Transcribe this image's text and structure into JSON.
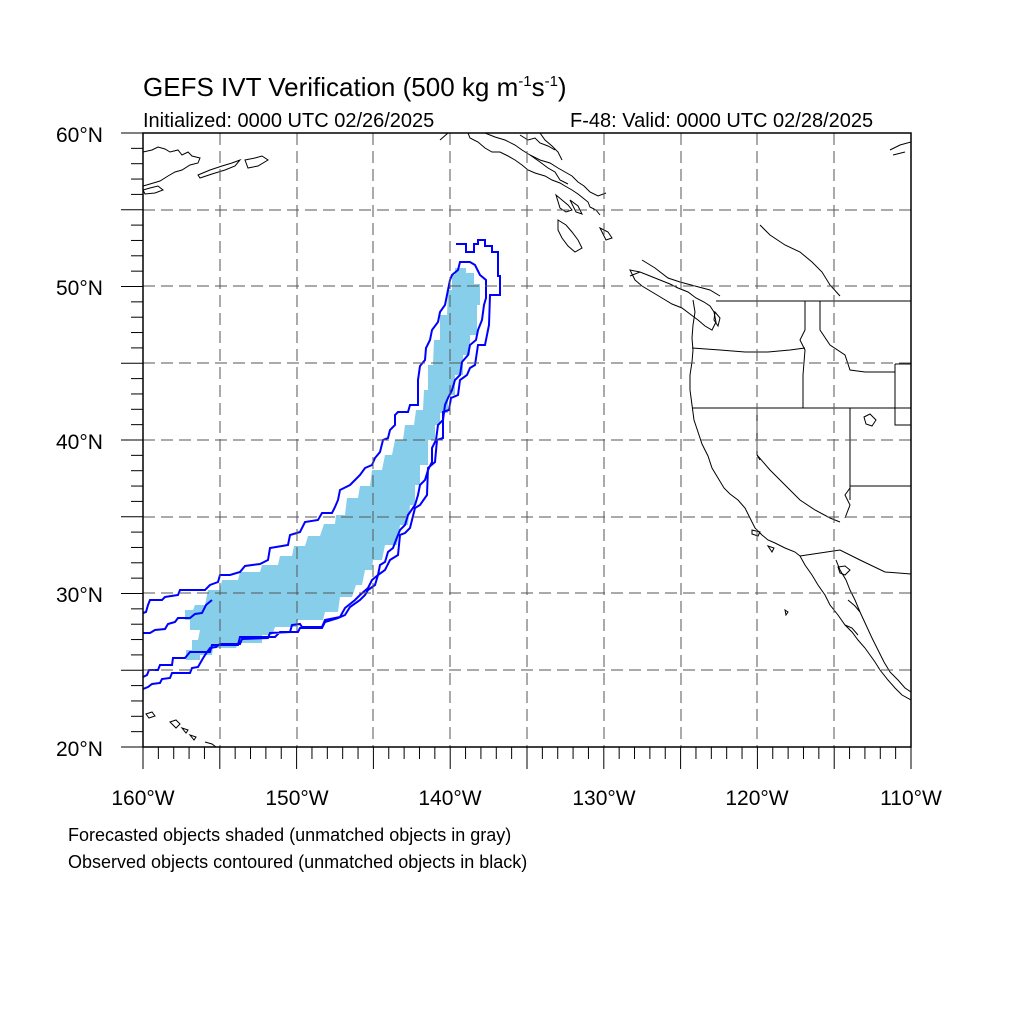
{
  "figure": {
    "title": "GEFS IVT Verification (500 kg m",
    "title_exp1": "-1",
    "title_mid": "s",
    "title_exp2": "-1",
    "title_end": ")",
    "initialized": "Initialized: 0000 UTC 02/26/2025",
    "valid": "F-48: Valid: 0000 UTC 02/28/2025",
    "note_forecast": "Forecasted objects shaded (unmatched objects in gray)",
    "note_observed": "Observed objects contoured (unmatched objects in black)"
  },
  "map": {
    "lon_range": [
      -160,
      -110
    ],
    "lat_range": [
      20,
      60
    ],
    "lat_labels": [
      "20°N",
      "30°N",
      "40°N",
      "50°N",
      "60°N"
    ],
    "lon_labels": [
      "160°W",
      "150°W",
      "140°W",
      "130°W",
      "120°W",
      "110°W"
    ],
    "forecast_fill_color": "#87ceeb",
    "observed_contour_color": "#0000ff",
    "coastline_color": "#000000",
    "gridlines": "dashed"
  }
}
